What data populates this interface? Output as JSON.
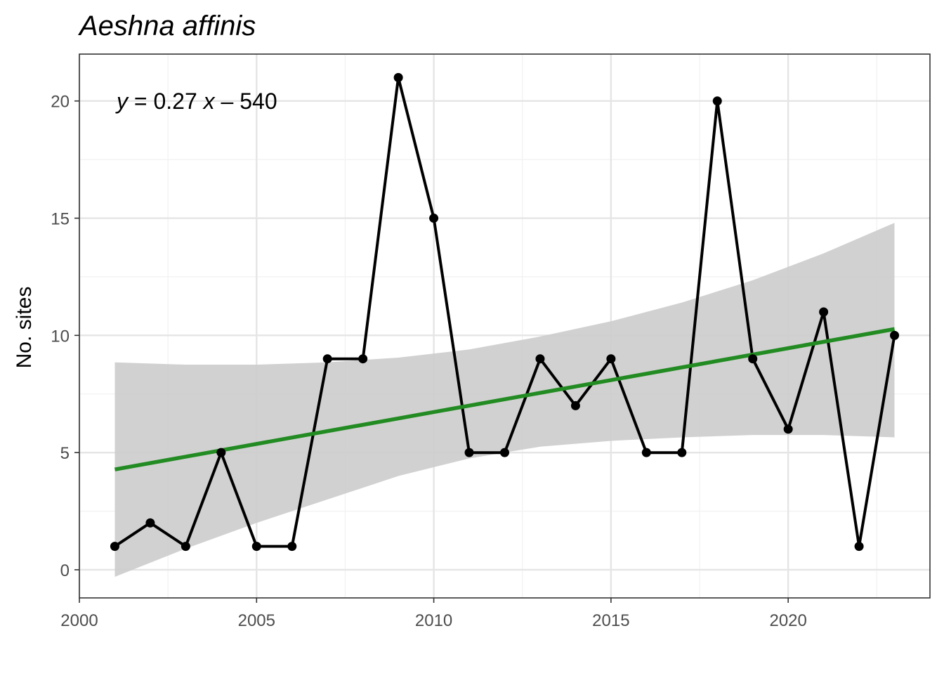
{
  "chart_data": {
    "type": "line",
    "title": "Aeshna affinis",
    "xlabel": "",
    "ylabel": "No. sites",
    "xlim": [
      2000,
      2024
    ],
    "ylim": [
      -1.2,
      22
    ],
    "x_ticks": [
      2000,
      2005,
      2010,
      2015,
      2020
    ],
    "y_ticks": [
      0,
      5,
      10,
      15,
      20
    ],
    "grid": true,
    "series": [
      {
        "x": [
          2001,
          2002,
          2003,
          2004,
          2005,
          2006,
          2007,
          2008,
          2009,
          2010,
          2011,
          2012,
          2013,
          2014,
          2015,
          2016,
          2017,
          2018,
          2019,
          2020,
          2021,
          2022,
          2023
        ],
        "values": [
          1,
          2,
          1,
          5,
          1,
          1,
          9,
          9,
          21,
          15,
          5,
          5,
          9,
          7,
          9,
          5,
          5,
          20,
          9,
          6,
          11,
          1,
          10
        ]
      }
    ],
    "trend": {
      "color": "#228B22",
      "x": [
        2001,
        2023
      ],
      "y": [
        4.28,
        10.27
      ]
    },
    "confidence_band": {
      "color": "#cccccc",
      "x": [
        2001,
        2003,
        2005,
        2007,
        2009,
        2011,
        2013,
        2015,
        2017,
        2019,
        2021,
        2023
      ],
      "lower": [
        -0.3,
        0.9,
        2.0,
        3.0,
        4.0,
        4.75,
        5.25,
        5.5,
        5.65,
        5.75,
        5.75,
        5.65
      ],
      "upper": [
        8.85,
        8.75,
        8.75,
        8.85,
        9.05,
        9.4,
        9.95,
        10.6,
        11.4,
        12.35,
        13.5,
        14.8
      ]
    },
    "annotation": {
      "y": "y",
      "eq": " = 0.27 ",
      "x": "x",
      "rest": " – 540"
    },
    "colors": {
      "line": "#000000",
      "point": "#000000",
      "grid_major": "#e5e5e5",
      "grid_minor": "#f2f2f2",
      "panel_border": "#333333"
    }
  }
}
